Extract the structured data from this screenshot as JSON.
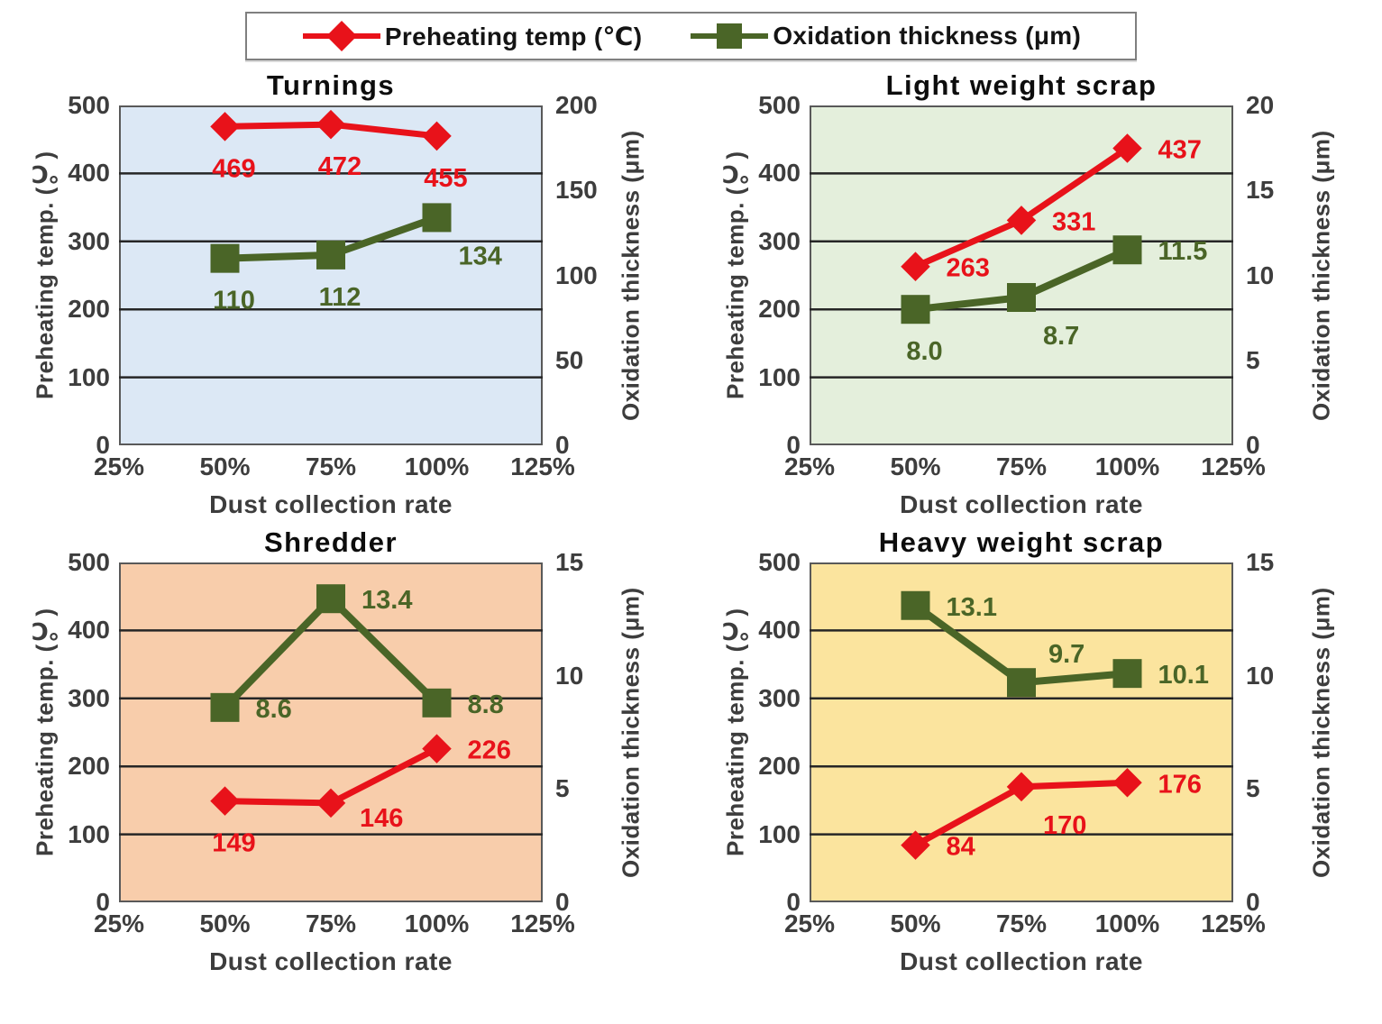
{
  "legend": {
    "border_color": "#7f7f7f",
    "items": [
      {
        "label": "Preheating temp (℃)",
        "marker": "diamond",
        "color": "#e8121a"
      },
      {
        "label": "Oxidation thickness (μm)",
        "marker": "square",
        "color": "#4a6527"
      }
    ]
  },
  "chart_data": [
    {
      "type": "line",
      "title": "Turnings",
      "plot_bg": "#dce8f5",
      "x_title": "Dust collection rate",
      "x_categories": [
        "25%",
        "50%",
        "75%",
        "100%",
        "125%"
      ],
      "left_axis": {
        "title": "Preheating temp. (℃)",
        "lim": [
          0,
          500
        ],
        "ticks": [
          "0",
          "100",
          "200",
          "300",
          "400",
          "500"
        ]
      },
      "right_axis": {
        "title": "Oxidation thickness (μm)",
        "lim": [
          0,
          200
        ],
        "ticks": [
          "0",
          "50",
          "100",
          "150",
          "200"
        ]
      },
      "series": [
        {
          "name": "Preheating temp (℃)",
          "axis": "left",
          "marker": "diamond",
          "color": "#e8121a",
          "x": [
            "50%",
            "75%",
            "100%"
          ],
          "values": [
            469,
            472,
            455
          ],
          "labels": [
            "469",
            "472",
            "455"
          ],
          "label_pos": [
            "below",
            "below",
            "below"
          ]
        },
        {
          "name": "Oxidation thickness (μm)",
          "axis": "right",
          "marker": "square",
          "color": "#4a6527",
          "x": [
            "50%",
            "75%",
            "100%"
          ],
          "values": [
            110,
            112,
            134
          ],
          "labels": [
            "110",
            "112",
            "134"
          ],
          "label_pos": [
            "below",
            "below",
            "below-right"
          ]
        }
      ]
    },
    {
      "type": "line",
      "title": "Light weight scrap",
      "plot_bg": "#e4efdc",
      "x_title": "Dust collection rate",
      "x_categories": [
        "25%",
        "50%",
        "75%",
        "100%",
        "125%"
      ],
      "left_axis": {
        "title": "Preheating temp. (℃)",
        "lim": [
          0,
          500
        ],
        "ticks": [
          "0",
          "100",
          "200",
          "300",
          "400",
          "500"
        ]
      },
      "right_axis": {
        "title": "Oxidation thickness (μm)",
        "lim": [
          0,
          20
        ],
        "ticks": [
          "0",
          "5",
          "10",
          "15",
          "20"
        ]
      },
      "series": [
        {
          "name": "Preheating temp (℃)",
          "axis": "left",
          "marker": "diamond",
          "color": "#e8121a",
          "x": [
            "50%",
            "75%",
            "100%"
          ],
          "values": [
            263,
            331,
            437
          ],
          "labels": [
            "263",
            "331",
            "437"
          ],
          "label_pos": [
            "right",
            "right",
            "right"
          ]
        },
        {
          "name": "Oxidation thickness (μm)",
          "axis": "right",
          "marker": "square",
          "color": "#4a6527",
          "x": [
            "50%",
            "75%",
            "100%"
          ],
          "values": [
            8.0,
            8.7,
            11.5
          ],
          "labels": [
            "8.0",
            "8.7",
            "11.5"
          ],
          "label_pos": [
            "below",
            "below-right",
            "right"
          ]
        }
      ]
    },
    {
      "type": "line",
      "title": "Shredder",
      "plot_bg": "#f8cdab",
      "x_title": "Dust collection rate",
      "x_categories": [
        "25%",
        "50%",
        "75%",
        "100%",
        "125%"
      ],
      "left_axis": {
        "title": "Preheating temp. (℃)",
        "lim": [
          0,
          500
        ],
        "ticks": [
          "0",
          "100",
          "200",
          "300",
          "400",
          "500"
        ]
      },
      "right_axis": {
        "title": "Oxidation thickness (μm)",
        "lim": [
          0,
          15
        ],
        "ticks": [
          "0",
          "5",
          "10",
          "15"
        ]
      },
      "series": [
        {
          "name": "Preheating temp (℃)",
          "axis": "left",
          "marker": "diamond",
          "color": "#e8121a",
          "x": [
            "50%",
            "75%",
            "100%"
          ],
          "values": [
            149,
            146,
            226
          ],
          "labels": [
            "149",
            "146",
            "226"
          ],
          "label_pos": [
            "below",
            "right-below",
            "right"
          ]
        },
        {
          "name": "Oxidation thickness (μm)",
          "axis": "right",
          "marker": "square",
          "color": "#4a6527",
          "x": [
            "50%",
            "75%",
            "100%"
          ],
          "values": [
            8.6,
            13.4,
            8.8
          ],
          "labels": [
            "8.6",
            "13.4",
            "8.8"
          ],
          "label_pos": [
            "right",
            "right",
            "right"
          ]
        }
      ]
    },
    {
      "type": "line",
      "title": "Heavy weight scrap",
      "plot_bg": "#fbe49e",
      "x_title": "Dust collection rate",
      "x_categories": [
        "25%",
        "50%",
        "75%",
        "100%",
        "125%"
      ],
      "left_axis": {
        "title": "Preheating temp. (℃)",
        "lim": [
          0,
          500
        ],
        "ticks": [
          "0",
          "100",
          "200",
          "300",
          "400",
          "500"
        ]
      },
      "right_axis": {
        "title": "Oxidation thickness (μm)",
        "lim": [
          0,
          15
        ],
        "ticks": [
          "0",
          "5",
          "10",
          "15"
        ]
      },
      "series": [
        {
          "name": "Preheating temp (℃)",
          "axis": "left",
          "marker": "diamond",
          "color": "#e8121a",
          "x": [
            "50%",
            "75%",
            "100%"
          ],
          "values": [
            84,
            170,
            176
          ],
          "labels": [
            "84",
            "170",
            "176"
          ],
          "label_pos": [
            "right",
            "below-right",
            "right"
          ]
        },
        {
          "name": "Oxidation thickness (μm)",
          "axis": "right",
          "marker": "square",
          "color": "#4a6527",
          "x": [
            "50%",
            "75%",
            "100%"
          ],
          "values": [
            13.1,
            9.7,
            10.1
          ],
          "labels": [
            "13.1",
            "9.7",
            "10.1"
          ],
          "label_pos": [
            "right",
            "above-right",
            "right"
          ]
        }
      ]
    }
  ]
}
